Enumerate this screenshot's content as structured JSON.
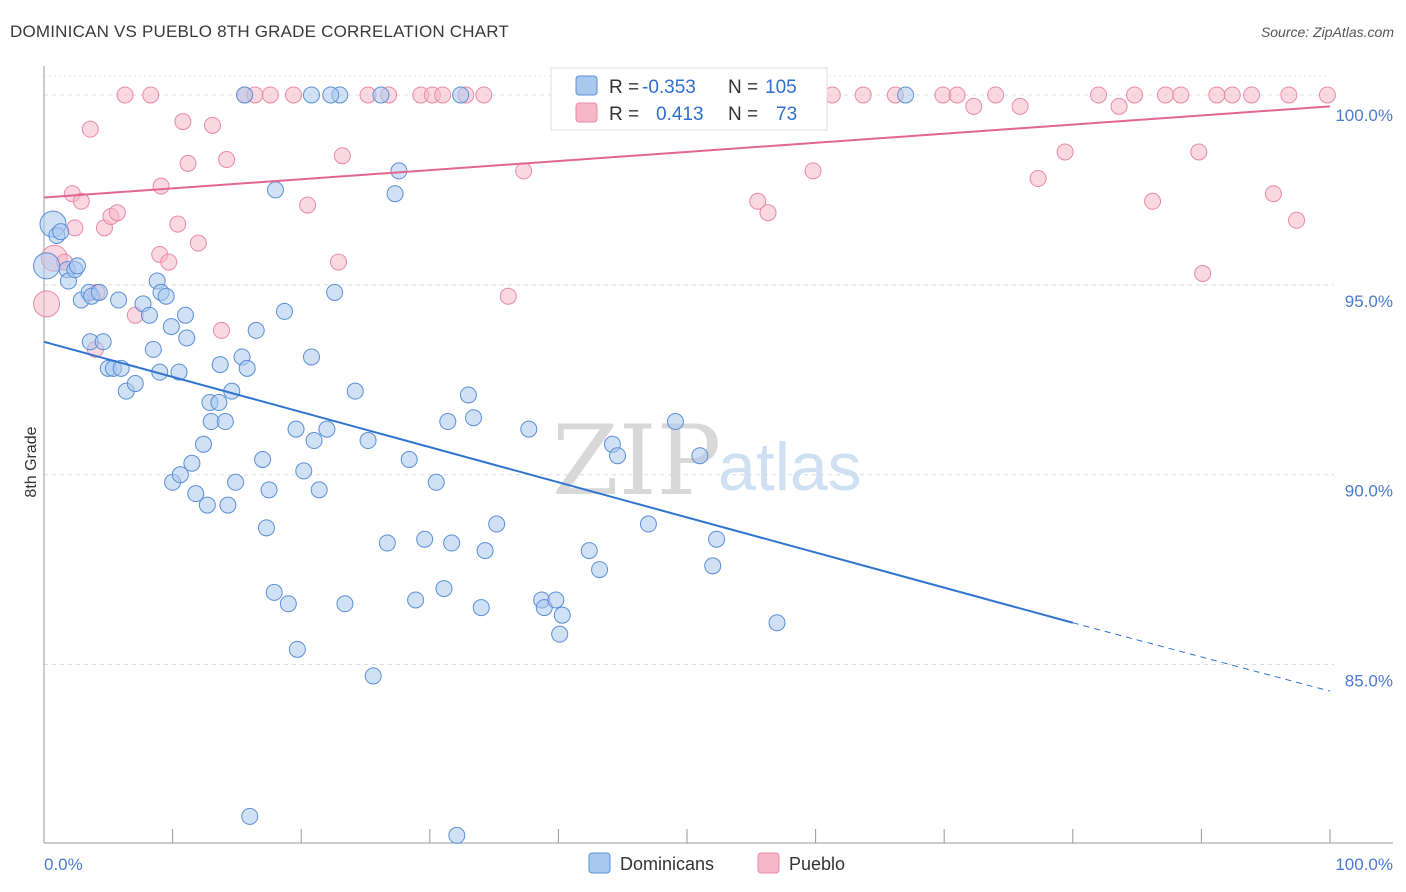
{
  "header": {
    "title": "DOMINICAN VS PUEBLO 8TH GRADE CORRELATION CHART",
    "source": "Source: ZipAtlas.com"
  },
  "legend_top": {
    "rows": [
      {
        "r_label": "R =",
        "r_value": "-0.353",
        "n_label": "N =",
        "n_value": "105"
      },
      {
        "r_label": "R =",
        "r_value": "0.413",
        "n_label": "N =",
        "n_value": "73"
      }
    ]
  },
  "legend_bottom": {
    "items": [
      "Dominicans",
      "Pueblo"
    ]
  },
  "watermark": {
    "zip": "ZIP",
    "atlas": "atlas"
  },
  "colors": {
    "dominicans_fill": "#a9c8ee",
    "dominicans_stroke": "#5b8fd6",
    "dominicans_line": "#2f74d0",
    "pueblo_fill": "#f6b8c9",
    "pueblo_stroke": "#e88aa6",
    "pueblo_line": "#e0668f"
  },
  "chart_data": {
    "type": "scatter",
    "title": "DOMINICAN VS PUEBLO 8TH GRADE CORRELATION CHART",
    "xlabel": "",
    "ylabel": "8th Grade",
    "xlim": [
      0,
      100
    ],
    "ylim": [
      80.3,
      100.5
    ],
    "x_ticks": [
      "0.0%",
      "100.0%"
    ],
    "y_ticks": [
      {
        "value": 85,
        "label": "85.0%"
      },
      {
        "value": 90,
        "label": "90.0%"
      },
      {
        "value": 95,
        "label": "95.0%"
      },
      {
        "value": 100,
        "label": "100.0%"
      }
    ],
    "grid": true,
    "legend_position": "top-center",
    "series": [
      {
        "name": "Dominicans",
        "r": -0.353,
        "n": 105,
        "trend": {
          "x0": 0,
          "y0": 93.5,
          "x1": 80,
          "y1": 86.1,
          "dashed_to_x": 100,
          "dashed_to_y": 84.3
        },
        "points": [
          [
            0.2,
            95.5
          ],
          [
            0.7,
            96.6
          ],
          [
            1.0,
            96.3
          ],
          [
            1.3,
            96.4
          ],
          [
            1.8,
            95.4
          ],
          [
            1.9,
            95.1
          ],
          [
            2.4,
            95.4
          ],
          [
            2.6,
            95.5
          ],
          [
            2.9,
            94.6
          ],
          [
            3.5,
            94.8
          ],
          [
            3.7,
            94.7
          ],
          [
            4.3,
            94.8
          ],
          [
            3.6,
            93.5
          ],
          [
            4.6,
            93.5
          ],
          [
            5.0,
            92.8
          ],
          [
            5.4,
            92.8
          ],
          [
            6.0,
            92.8
          ],
          [
            6.4,
            92.2
          ],
          [
            5.8,
            94.6
          ],
          [
            7.1,
            92.4
          ],
          [
            7.7,
            94.5
          ],
          [
            8.2,
            94.2
          ],
          [
            8.5,
            93.3
          ],
          [
            8.8,
            95.1
          ],
          [
            9.0,
            92.7
          ],
          [
            9.1,
            94.8
          ],
          [
            9.5,
            94.7
          ],
          [
            9.9,
            93.9
          ],
          [
            10.0,
            89.8
          ],
          [
            10.5,
            92.7
          ],
          [
            10.6,
            90.0
          ],
          [
            11.0,
            94.2
          ],
          [
            11.1,
            93.6
          ],
          [
            11.5,
            90.3
          ],
          [
            11.8,
            89.5
          ],
          [
            12.4,
            90.8
          ],
          [
            12.7,
            89.2
          ],
          [
            13.0,
            91.4
          ],
          [
            12.9,
            91.9
          ],
          [
            13.6,
            91.9
          ],
          [
            13.7,
            92.9
          ],
          [
            14.1,
            91.4
          ],
          [
            14.3,
            89.2
          ],
          [
            14.6,
            92.2
          ],
          [
            14.9,
            89.8
          ],
          [
            15.4,
            93.1
          ],
          [
            15.8,
            92.8
          ],
          [
            16.5,
            93.8
          ],
          [
            17.0,
            90.4
          ],
          [
            17.3,
            88.6
          ],
          [
            17.5,
            89.6
          ],
          [
            17.9,
            86.9
          ],
          [
            18.7,
            94.3
          ],
          [
            19.0,
            86.6
          ],
          [
            19.6,
            91.2
          ],
          [
            19.7,
            85.4
          ],
          [
            20.2,
            90.1
          ],
          [
            20.8,
            93.1
          ],
          [
            21.0,
            90.9
          ],
          [
            21.4,
            89.6
          ],
          [
            22.0,
            91.2
          ],
          [
            22.6,
            94.8
          ],
          [
            23.0,
            100.0
          ],
          [
            23.4,
            86.6
          ],
          [
            24.2,
            92.2
          ],
          [
            25.2,
            90.9
          ],
          [
            25.6,
            84.7
          ],
          [
            26.2,
            100.0
          ],
          [
            26.7,
            88.2
          ],
          [
            27.6,
            98.0
          ],
          [
            27.3,
            97.4
          ],
          [
            28.4,
            90.4
          ],
          [
            28.9,
            86.7
          ],
          [
            29.6,
            88.3
          ],
          [
            30.5,
            89.8
          ],
          [
            31.1,
            87.0
          ],
          [
            31.4,
            91.4
          ],
          [
            31.7,
            88.2
          ],
          [
            32.1,
            80.5
          ],
          [
            32.4,
            100.0
          ],
          [
            33.0,
            92.1
          ],
          [
            33.4,
            91.5
          ],
          [
            34.0,
            86.5
          ],
          [
            34.3,
            88.0
          ],
          [
            35.2,
            88.7
          ],
          [
            37.7,
            91.2
          ],
          [
            38.7,
            86.7
          ],
          [
            38.9,
            86.5
          ],
          [
            39.8,
            86.7
          ],
          [
            40.1,
            85.8
          ],
          [
            40.3,
            86.3
          ],
          [
            42.4,
            88.0
          ],
          [
            43.2,
            87.5
          ],
          [
            44.2,
            90.8
          ],
          [
            44.6,
            90.5
          ],
          [
            47.0,
            88.7
          ],
          [
            49.1,
            91.4
          ],
          [
            51.0,
            90.5
          ],
          [
            52.0,
            87.6
          ],
          [
            52.3,
            88.3
          ],
          [
            57.0,
            86.1
          ],
          [
            16.0,
            81.0
          ],
          [
            15.6,
            100.0
          ],
          [
            18.0,
            97.5
          ],
          [
            20.8,
            100.0
          ],
          [
            22.3,
            100.0
          ],
          [
            67.0,
            100.0
          ]
        ]
      },
      {
        "name": "Pueblo",
        "r": 0.413,
        "n": 73,
        "trend": {
          "x0": 0,
          "y0": 97.3,
          "x1": 100,
          "y1": 99.7
        },
        "points": [
          [
            0.2,
            94.5
          ],
          [
            0.8,
            95.7
          ],
          [
            1.6,
            95.6
          ],
          [
            2.2,
            97.4
          ],
          [
            2.4,
            96.5
          ],
          [
            2.9,
            97.2
          ],
          [
            3.6,
            99.1
          ],
          [
            4.0,
            93.3
          ],
          [
            4.1,
            94.8
          ],
          [
            4.7,
            96.5
          ],
          [
            5.2,
            96.8
          ],
          [
            5.7,
            96.9
          ],
          [
            6.3,
            100.0
          ],
          [
            7.1,
            94.2
          ],
          [
            8.3,
            100.0
          ],
          [
            9.0,
            95.8
          ],
          [
            9.1,
            97.6
          ],
          [
            9.7,
            95.6
          ],
          [
            10.4,
            96.6
          ],
          [
            10.8,
            99.3
          ],
          [
            11.2,
            98.2
          ],
          [
            12.0,
            96.1
          ],
          [
            13.1,
            99.2
          ],
          [
            13.8,
            93.8
          ],
          [
            14.2,
            98.3
          ],
          [
            15.6,
            100.0
          ],
          [
            16.4,
            100.0
          ],
          [
            17.6,
            100.0
          ],
          [
            19.4,
            100.0
          ],
          [
            20.5,
            97.1
          ],
          [
            22.9,
            95.6
          ],
          [
            23.2,
            98.4
          ],
          [
            25.2,
            100.0
          ],
          [
            26.8,
            100.0
          ],
          [
            29.3,
            100.0
          ],
          [
            30.2,
            100.0
          ],
          [
            31.0,
            100.0
          ],
          [
            32.8,
            100.0
          ],
          [
            34.2,
            100.0
          ],
          [
            36.1,
            94.7
          ],
          [
            37.3,
            98.0
          ],
          [
            40.1,
            100.0
          ],
          [
            41.4,
            100.0
          ],
          [
            45.1,
            100.0
          ],
          [
            48.6,
            100.0
          ],
          [
            55.5,
            97.2
          ],
          [
            56.3,
            96.9
          ],
          [
            59.8,
            98.0
          ],
          [
            61.3,
            100.0
          ],
          [
            63.7,
            100.0
          ],
          [
            66.2,
            100.0
          ],
          [
            69.9,
            100.0
          ],
          [
            71.0,
            100.0
          ],
          [
            72.3,
            99.7
          ],
          [
            74.0,
            100.0
          ],
          [
            75.9,
            99.7
          ],
          [
            77.3,
            97.8
          ],
          [
            79.4,
            98.5
          ],
          [
            82.0,
            100.0
          ],
          [
            83.6,
            99.7
          ],
          [
            84.8,
            100.0
          ],
          [
            86.2,
            97.2
          ],
          [
            87.2,
            100.0
          ],
          [
            88.4,
            100.0
          ],
          [
            89.8,
            98.5
          ],
          [
            90.1,
            95.3
          ],
          [
            91.2,
            100.0
          ],
          [
            92.4,
            100.0
          ],
          [
            93.9,
            100.0
          ],
          [
            95.6,
            97.4
          ],
          [
            96.8,
            100.0
          ],
          [
            97.4,
            96.7
          ],
          [
            99.8,
            100.0
          ]
        ]
      }
    ]
  }
}
